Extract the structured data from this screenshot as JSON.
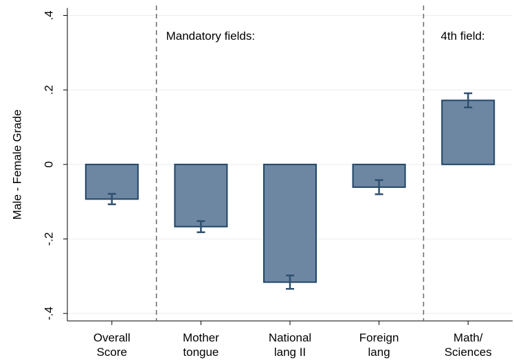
{
  "chart_data": {
    "type": "bar",
    "y_label": "Male - Female Grade",
    "annotations": [
      "Mandatory fields:",
      "4th field:"
    ],
    "categories": [
      [
        "Overall",
        "Score"
      ],
      [
        "Mother",
        "tongue"
      ],
      [
        "National",
        "lang II"
      ],
      [
        "Foreign",
        "lang"
      ],
      [
        "Math/",
        "Sciences"
      ]
    ],
    "values": [
      -0.093,
      -0.167,
      -0.316,
      -0.061,
      0.172
    ],
    "errors": [
      0.014,
      0.015,
      0.018,
      0.019,
      0.019
    ],
    "color": "#6d87a3",
    "edge_color": "#1f4466",
    "error_color": "#2e4f6e",
    "ylim": [
      -0.42,
      0.42
    ],
    "yticks": [
      {
        "value": -0.4,
        "label": "-.4"
      },
      {
        "value": -0.2,
        "label": "-.2"
      },
      0,
      {
        "value": 0.2,
        "label": ".2"
      },
      {
        "value": 0.4,
        "label": ".4"
      }
    ],
    "grid": true
  }
}
